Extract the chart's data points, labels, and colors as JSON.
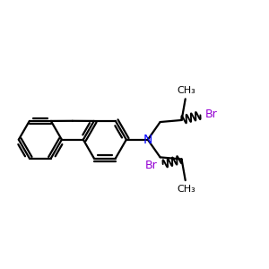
{
  "bg_color": "#ffffff",
  "bond_color": "#000000",
  "N_color": "#0000ff",
  "Br_color": "#9400d3",
  "bond_lw": 1.6,
  "figsize": [
    3.0,
    3.0
  ],
  "dpi": 100,
  "xlim": [
    -1.05,
    1.55
  ],
  "ylim": [
    -1.05,
    1.15
  ],
  "BL": 0.21,
  "N_fontsize": 10,
  "Br_fontsize": 9,
  "CH3_fontsize": 8
}
